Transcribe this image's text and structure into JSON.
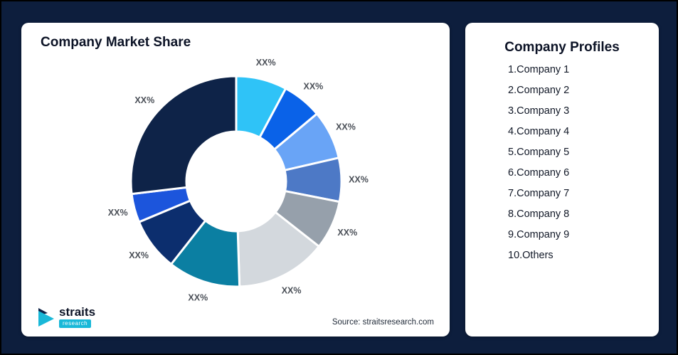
{
  "page": {
    "background_color": "#0d1e3d"
  },
  "market_share_card": {
    "title": "Company Market Share",
    "source": "Source: straitsresearch.com",
    "logo": {
      "brand": "straits",
      "sub_brand": "research",
      "accent_color": "#19b8d8"
    }
  },
  "profiles_card": {
    "title": "Company Profiles",
    "items": [
      "1.Company 1",
      "2.Company 2",
      "3.Company 3",
      "4.Company 4",
      "5.Company 5",
      "6.Company 6",
      "7.Company 7",
      "8.Company 8",
      "9.Company 9",
      "10.Others"
    ]
  },
  "chart_data": {
    "type": "pie",
    "donut": true,
    "title": "Company Market Share",
    "label_format": "XX%",
    "start_angle_deg": 0,
    "direction": "clockwise",
    "inner_radius_ratio": 0.47,
    "legend": "none",
    "slices": [
      {
        "label": "XX%",
        "value_pct": 7.8,
        "color": "#2fc3f7"
      },
      {
        "label": "XX%",
        "value_pct": 6.1,
        "color": "#0a62e8"
      },
      {
        "label": "XX%",
        "value_pct": 7.5,
        "color": "#69a4f6"
      },
      {
        "label": "XX%",
        "value_pct": 6.7,
        "color": "#4d79c6"
      },
      {
        "label": "XX%",
        "value_pct": 7.5,
        "color": "#96a0ab"
      },
      {
        "label": "XX%",
        "value_pct": 13.9,
        "color": "#d3d8dd"
      },
      {
        "label": "XX%",
        "value_pct": 11.1,
        "color": "#0b7fa2"
      },
      {
        "label": "XX%",
        "value_pct": 8.1,
        "color": "#0c2e6e"
      },
      {
        "label": "XX%",
        "value_pct": 4.4,
        "color": "#1c55dc"
      },
      {
        "label": "XX%",
        "value_pct": 26.9,
        "color": "#0e2348"
      }
    ]
  }
}
